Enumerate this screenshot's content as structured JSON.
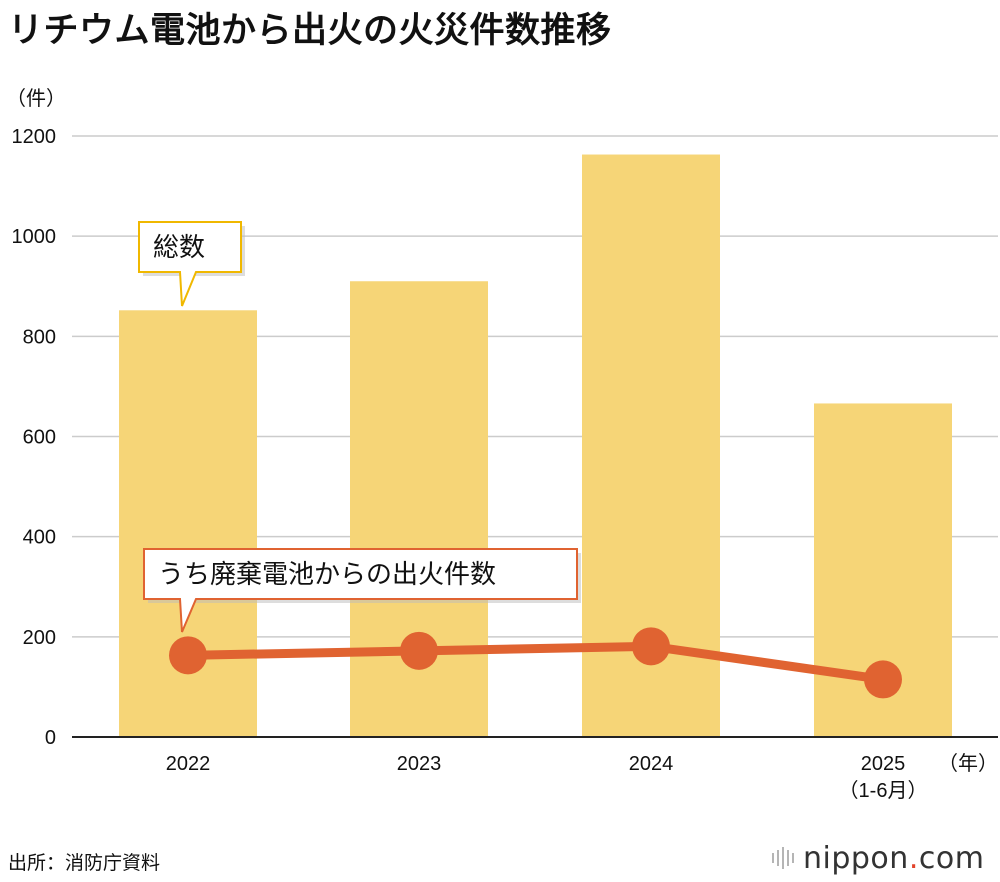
{
  "title": "リチウム電池から出火の火災件数推移",
  "y_unit": "（件）",
  "x_unit": "（年）",
  "source": "出所：消防庁資料",
  "logo": {
    "brand": "nippon",
    "dot": ".",
    "tld": "com"
  },
  "colors": {
    "bar": "#f6d577",
    "line": "#e06331",
    "grid": "#cccccc",
    "total_callout_border": "#f0b800",
    "waste_callout_border": "#e06331"
  },
  "chart_data": {
    "type": "bar",
    "categories": [
      "2022",
      "2023",
      "2024",
      "2025"
    ],
    "category_sublabels": [
      "",
      "",
      "",
      "（1-6月）"
    ],
    "ylim": [
      0,
      1200
    ],
    "yticks": [
      0,
      200,
      400,
      600,
      800,
      1000,
      1200
    ],
    "grid": true,
    "series": [
      {
        "name": "総数",
        "type": "bar",
        "values": [
          852,
          910,
          1163,
          666
        ]
      },
      {
        "name": "うち廃棄電池からの出火件数",
        "type": "line",
        "values": [
          163,
          172,
          181,
          115
        ]
      }
    ]
  }
}
